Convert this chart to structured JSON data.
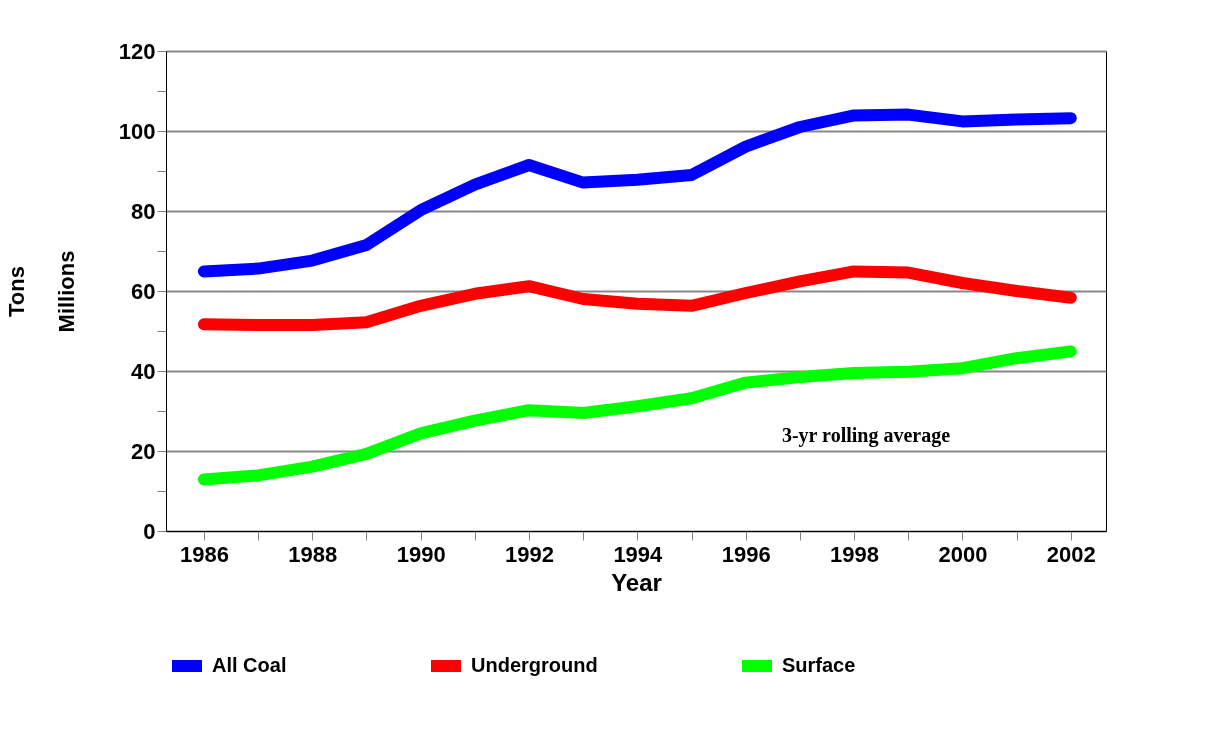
{
  "chart_data": {
    "type": "line",
    "xlabel": "Year",
    "ylabel": "Tons\nMillions",
    "x": [
      1986,
      1987,
      1988,
      1989,
      1990,
      1991,
      1992,
      1993,
      1994,
      1995,
      1996,
      1997,
      1998,
      1999,
      2000,
      2001,
      2002
    ],
    "series": [
      {
        "name": "All Coal",
        "color": "#0000ff",
        "values": [
          64.9,
          65.6,
          67.6,
          71.5,
          80.2,
          86.6,
          91.5,
          87.1,
          87.8,
          89.0,
          96.1,
          101.0,
          103.9,
          104.1,
          102.4,
          102.9,
          103.2
        ]
      },
      {
        "name": "Underground",
        "color": "#ff0000",
        "values": [
          51.7,
          51.5,
          51.5,
          52.2,
          56.3,
          59.3,
          61.2,
          58.0,
          56.8,
          56.3,
          59.5,
          62.4,
          64.9,
          64.6,
          62.0,
          60.0,
          58.3
        ]
      },
      {
        "name": "Surface",
        "color": "#00ff00",
        "values": [
          12.9,
          13.9,
          16.1,
          19.3,
          24.4,
          27.6,
          30.2,
          29.5,
          31.2,
          33.2,
          37.1,
          38.5,
          39.5,
          39.8,
          40.7,
          43.2,
          44.9
        ]
      }
    ],
    "xlim": [
      1985.3,
      2002.65
    ],
    "xticks": [
      1986,
      {
        "value": 1987,
        "label": null
      },
      1988,
      {
        "value": 1989,
        "label": null
      },
      1990,
      {
        "value": 1991,
        "label": null
      },
      1992,
      {
        "value": 1993,
        "label": null
      },
      1994,
      {
        "value": 1995,
        "label": null
      },
      1996,
      {
        "value": 1997,
        "label": null
      },
      1998,
      {
        "value": 1999,
        "label": null
      },
      2000,
      {
        "value": 2001,
        "label": null
      },
      2002
    ],
    "ylim": [
      0,
      120
    ],
    "yticks": [
      0,
      {
        "value": 10,
        "label": null
      },
      20,
      {
        "value": 30,
        "label": null
      },
      40,
      {
        "value": 50,
        "label": null
      },
      60,
      {
        "value": 70,
        "label": null
      },
      80,
      {
        "value": 90,
        "label": null
      },
      100,
      {
        "value": 110,
        "label": null
      },
      120
    ],
    "grid": "y",
    "legend": "bottom",
    "line_style": "solid",
    "annotations": [
      "3-yr rolling average"
    ]
  }
}
